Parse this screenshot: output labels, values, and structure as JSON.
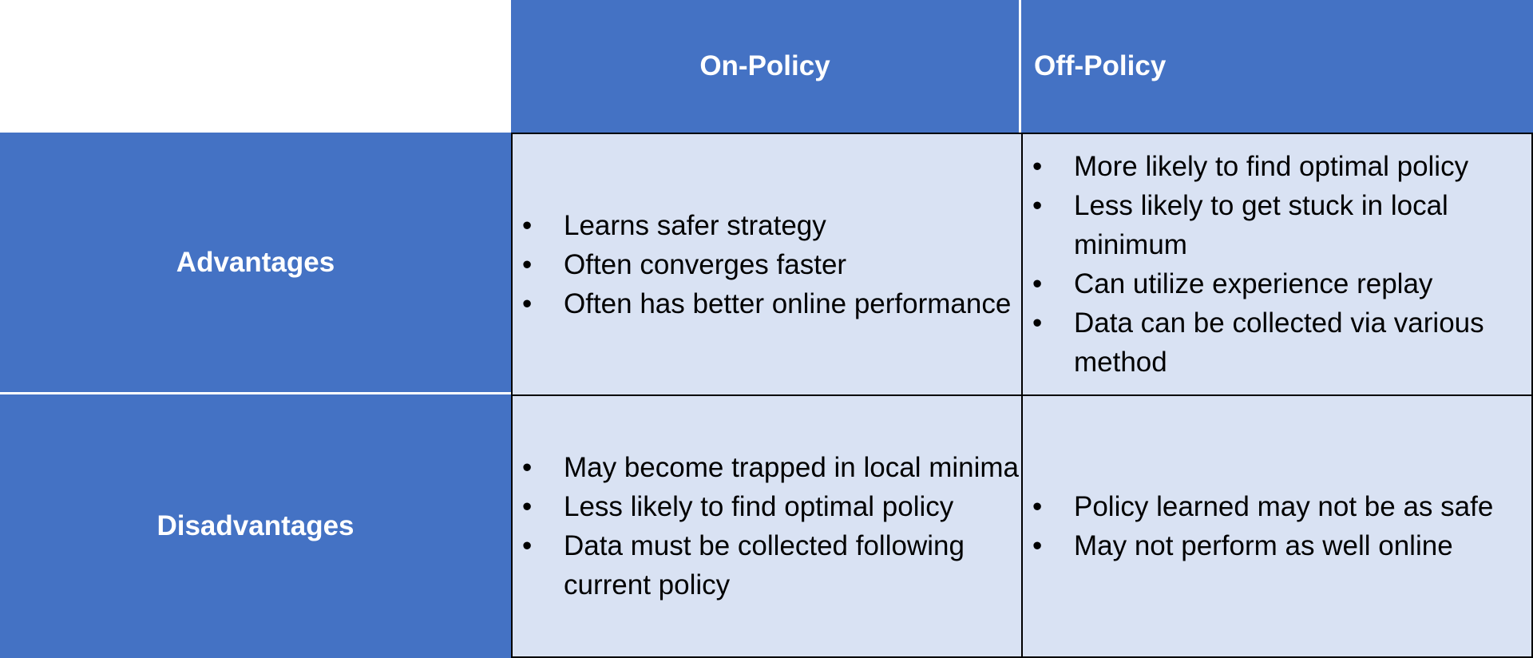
{
  "table": {
    "columns": [
      "On-Policy",
      "Off-Policy"
    ],
    "rows": [
      {
        "label": "Advantages",
        "on_policy": [
          "Learns safer strategy",
          "Often converges faster",
          "Often has better online performance"
        ],
        "off_policy": [
          "More likely to find optimal policy",
          "Less likely to get stuck in local minimum",
          "Can utilize experience replay",
          "Data can be collected via various method"
        ]
      },
      {
        "label": "Disadvantages",
        "on_policy": [
          "May become trapped in local minima",
          "Less likely to find optimal policy",
          "Data must be collected following current policy"
        ],
        "off_policy": [
          "Policy learned may not be as safe",
          "May not perform as well online"
        ]
      }
    ]
  },
  "colors": {
    "header_bg": "#4472c4",
    "cell_bg": "#d9e2f3",
    "header_text": "#ffffff",
    "cell_text": "#000000"
  }
}
